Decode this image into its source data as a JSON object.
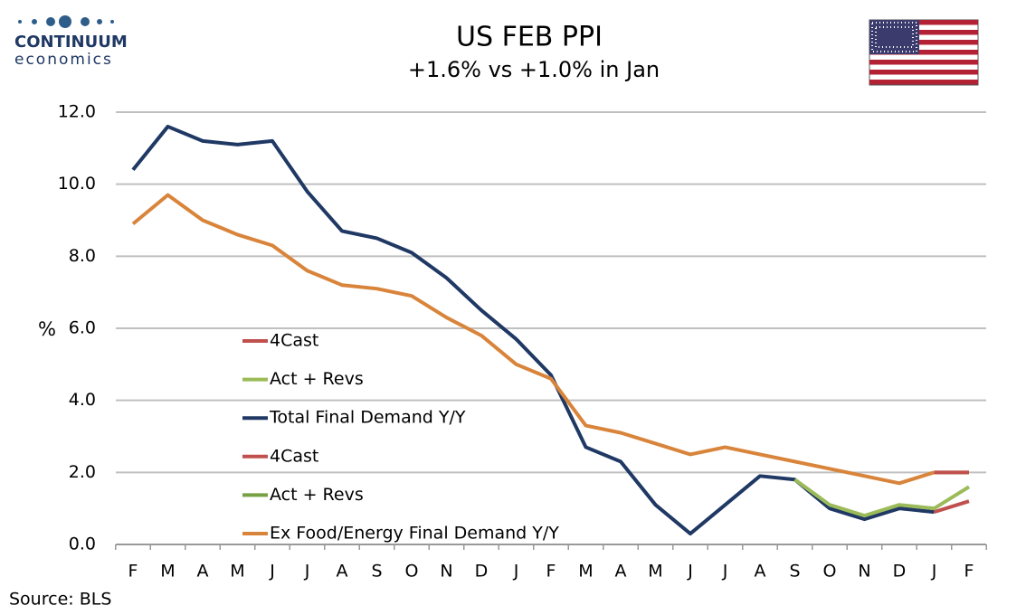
{
  "brand": {
    "name": "CONTINUUM",
    "tagline": "economics"
  },
  "chart_data": {
    "type": "line",
    "title": "US FEB PPI",
    "subtitle": "+1.6% vs +1.0% in Jan",
    "ylabel": "%",
    "source": "Source: BLS",
    "categories": [
      "F",
      "M",
      "A",
      "M",
      "J",
      "J",
      "A",
      "S",
      "O",
      "N",
      "D",
      "J",
      "F",
      "M",
      "A",
      "M",
      "J",
      "J",
      "A",
      "S",
      "O",
      "N",
      "D",
      "J",
      "F"
    ],
    "ylim": [
      0,
      12
    ],
    "yticks": [
      {
        "value": 0,
        "label": "0.0"
      },
      {
        "value": 2,
        "label": "2.0"
      },
      {
        "value": 4,
        "label": "4.0"
      },
      {
        "value": 6,
        "label": "6.0"
      },
      {
        "value": 8,
        "label": "8.0"
      },
      {
        "value": 10,
        "label": "10.0"
      },
      {
        "value": 12,
        "label": "12.0"
      }
    ],
    "grid": true,
    "series": [
      {
        "name": "4Cast",
        "color": "#c0504d",
        "values": [
          null,
          null,
          null,
          null,
          null,
          null,
          null,
          null,
          null,
          null,
          null,
          null,
          null,
          null,
          null,
          null,
          null,
          null,
          null,
          null,
          null,
          null,
          null,
          0.9,
          1.2
        ]
      },
      {
        "name": "Act + Revs",
        "color": "#9bbb59",
        "values": [
          null,
          null,
          null,
          null,
          null,
          null,
          null,
          null,
          null,
          null,
          null,
          null,
          null,
          null,
          null,
          null,
          null,
          null,
          null,
          1.8,
          1.1,
          0.8,
          1.1,
          1.0,
          1.6
        ]
      },
      {
        "name": "Total Final Demand Y/Y",
        "color": "#1f3864",
        "values": [
          10.4,
          11.6,
          11.2,
          11.1,
          11.2,
          9.8,
          8.7,
          8.5,
          8.1,
          7.4,
          6.5,
          5.7,
          4.7,
          2.7,
          2.3,
          1.1,
          0.3,
          1.1,
          1.9,
          1.8,
          1.0,
          0.7,
          1.0,
          0.9,
          null
        ]
      },
      {
        "name": "4Cast",
        "color": "#c0504d",
        "values": [
          null,
          null,
          null,
          null,
          null,
          null,
          null,
          null,
          null,
          null,
          null,
          null,
          null,
          null,
          null,
          null,
          null,
          null,
          null,
          null,
          null,
          null,
          null,
          2.0,
          2.0
        ]
      },
      {
        "name": "Act + Revs",
        "color": "#77a043",
        "values": [
          null,
          null,
          null,
          null,
          null,
          null,
          null,
          null,
          null,
          null,
          null,
          null,
          null,
          null,
          null,
          null,
          null,
          null,
          null,
          null,
          null,
          null,
          null,
          2.0,
          2.0
        ]
      },
      {
        "name": "Ex Food/Energy Final Demand Y/Y",
        "color": "#d9843b",
        "values": [
          8.9,
          9.7,
          9.0,
          8.6,
          8.3,
          7.6,
          7.2,
          7.1,
          6.9,
          6.3,
          5.8,
          5.0,
          4.6,
          3.3,
          3.1,
          2.8,
          2.5,
          2.7,
          2.5,
          2.3,
          2.1,
          1.9,
          1.7,
          2.0,
          null
        ]
      }
    ]
  }
}
